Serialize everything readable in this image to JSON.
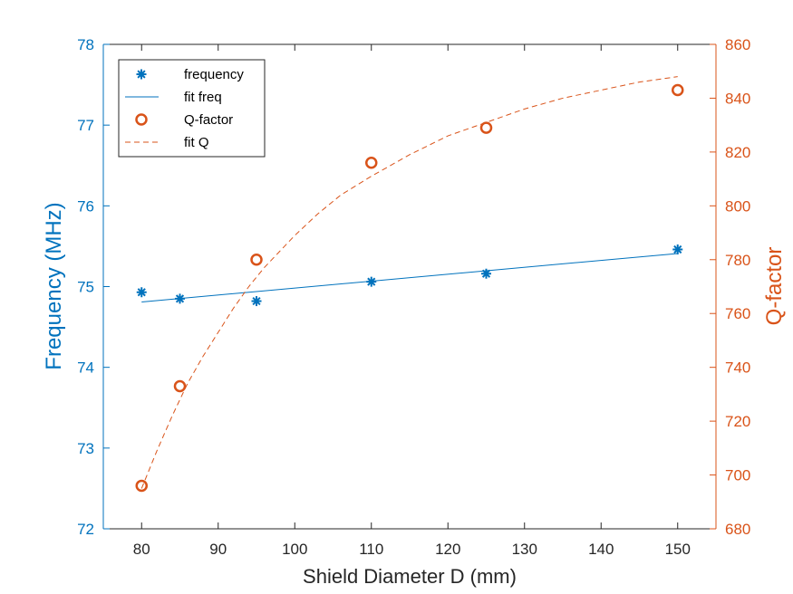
{
  "chart_data": {
    "type": "line",
    "title": "",
    "xlabel": "Shield Diameter D (mm)",
    "ylabel_left": "Frequency (MHz)",
    "ylabel_right": "Q-factor",
    "xlim": [
      75,
      155
    ],
    "ylim_left": [
      72,
      78
    ],
    "ylim_right": [
      680,
      860
    ],
    "xticks": [
      80,
      90,
      100,
      110,
      120,
      130,
      140,
      150
    ],
    "yticks_left": [
      72,
      73,
      74,
      75,
      76,
      77,
      78
    ],
    "yticks_right": [
      680,
      700,
      720,
      740,
      760,
      780,
      800,
      820,
      840,
      860
    ],
    "grid": false,
    "legend_position": "top-left",
    "colors": {
      "left": "#0072bd",
      "right": "#d95319",
      "axis": "#262626"
    },
    "series": [
      {
        "name": "frequency",
        "axis": "left",
        "style": "asterisk-markers",
        "x": [
          80,
          85,
          95,
          110,
          125,
          150
        ],
        "y": [
          74.93,
          74.85,
          74.82,
          75.06,
          75.16,
          75.46
        ]
      },
      {
        "name": "fit freq",
        "axis": "left",
        "style": "solid-line",
        "x": [
          80,
          150
        ],
        "y": [
          74.81,
          75.41
        ]
      },
      {
        "name": "Q-factor",
        "axis": "right",
        "style": "circle-markers",
        "x": [
          80,
          85,
          95,
          110,
          125,
          150
        ],
        "y": [
          696,
          733,
          780,
          816,
          829,
          843
        ]
      },
      {
        "name": "fit Q",
        "axis": "right",
        "style": "dashed-line",
        "x": [
          80,
          82,
          84,
          86,
          88,
          90,
          92,
          94,
          96,
          98,
          100,
          103,
          106,
          110,
          115,
          120,
          125,
          130,
          135,
          140,
          145,
          150
        ],
        "y": [
          695,
          709,
          722,
          734,
          744,
          753,
          762,
          770,
          777,
          783,
          789,
          797,
          804,
          811,
          819,
          826,
          831,
          836,
          840,
          843,
          846,
          848
        ]
      }
    ]
  }
}
